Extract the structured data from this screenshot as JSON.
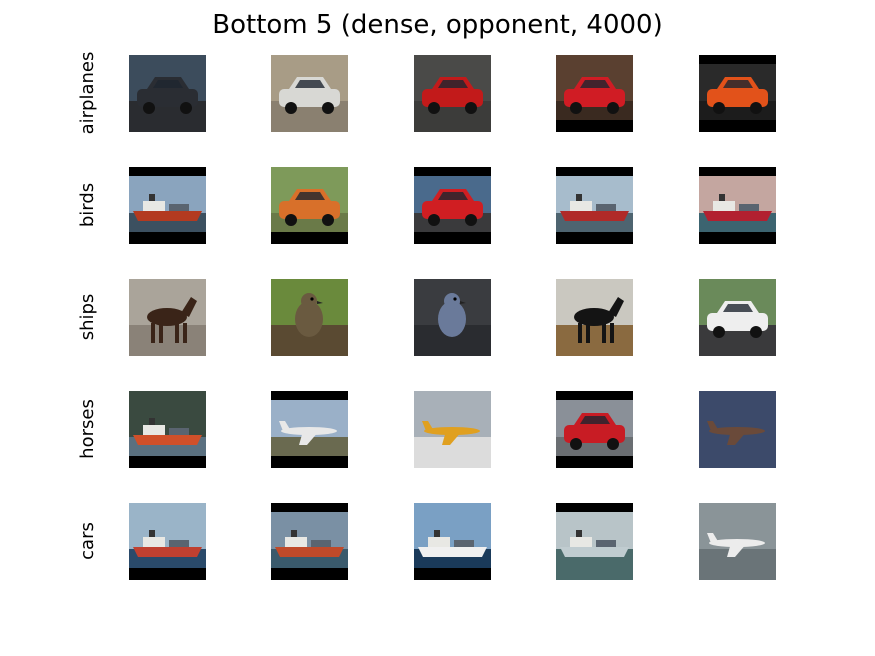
{
  "figure": {
    "title": "Bottom 5 (dense, opponent, 4000)",
    "rows": [
      {
        "label": "airplanes",
        "images": [
          {
            "name": "dark-hatchback-car",
            "subject": "car",
            "sky": "#3c4c5c",
            "ground": "#2a2c30",
            "body": "#2a2d33",
            "bars": "none"
          },
          {
            "name": "silver-compact-car",
            "subject": "car",
            "sky": "#a89c86",
            "ground": "#8a8070",
            "body": "#d8d8d4",
            "bars": "none"
          },
          {
            "name": "red-car-open-hood",
            "subject": "car",
            "sky": "#4a4a48",
            "ground": "#3c3c3a",
            "body": "#c21a1a",
            "bars": "none"
          },
          {
            "name": "red-hatchback-front",
            "subject": "car",
            "sky": "#5a4030",
            "ground": "#3a2a20",
            "body": "#d01c24",
            "bars": "bottom"
          },
          {
            "name": "orange-beetle-car",
            "subject": "car",
            "sky": "#2a2a2a",
            "ground": "#1c1c1c",
            "body": "#e2521a",
            "bars": "both"
          }
        ]
      },
      {
        "label": "birds",
        "images": [
          {
            "name": "cargo-ship-harbor",
            "subject": "ship",
            "sky": "#8aa4be",
            "ground": "#3c5060",
            "body": "#b33a20",
            "bars": "both"
          },
          {
            "name": "orange-muscle-car",
            "subject": "car",
            "sky": "#7e9a5a",
            "ground": "#6a7a48",
            "body": "#d8702a",
            "bars": "bottom"
          },
          {
            "name": "red-convertible",
            "subject": "car",
            "sky": "#4a6a8c",
            "ground": "#3a3a3c",
            "body": "#d01e22",
            "bars": "both"
          },
          {
            "name": "red-ferry-boat",
            "subject": "ship",
            "sky": "#a7bccc",
            "ground": "#4e6470",
            "body": "#b02a28",
            "bars": "both"
          },
          {
            "name": "red-tanker-ship",
            "subject": "ship",
            "sky": "#c4a6a0",
            "ground": "#3c6470",
            "body": "#b22030",
            "bars": "both"
          }
        ]
      },
      {
        "label": "ships",
        "images": [
          {
            "name": "horse-with-cart",
            "subject": "horse",
            "sky": "#aaa49a",
            "ground": "#8a8278",
            "body": "#3a2418",
            "bars": "none"
          },
          {
            "name": "spotted-bird-branch",
            "subject": "bird",
            "sky": "#6a8a3c",
            "ground": "#5a4a32",
            "body": "#6a5a40",
            "bars": "none"
          },
          {
            "name": "blue-bird-closeup",
            "subject": "bird",
            "sky": "#3a3c40",
            "ground": "#2a2c30",
            "body": "#6a7a9a",
            "bars": "none"
          },
          {
            "name": "dressage-horse-rider",
            "subject": "horse",
            "sky": "#cac8c0",
            "ground": "#8a6a40",
            "body": "#141414",
            "bars": "none"
          },
          {
            "name": "white-race-car",
            "subject": "car",
            "sky": "#6a8a5a",
            "ground": "#3a3a3c",
            "body": "#eeeeee",
            "bars": "none"
          }
        ]
      },
      {
        "label": "horses",
        "images": [
          {
            "name": "red-ship-mountains",
            "subject": "ship",
            "sky": "#3a4a40",
            "ground": "#5a7080",
            "body": "#d0502a",
            "bars": "bottom"
          },
          {
            "name": "airliner-on-runway",
            "subject": "plane",
            "sky": "#9ab0c8",
            "ground": "#6a6a50",
            "body": "#e8e8e8",
            "bars": "both"
          },
          {
            "name": "yellow-plane-snow",
            "subject": "plane",
            "sky": "#a8b0b8",
            "ground": "#dcdcdc",
            "body": "#e0a020",
            "bars": "none"
          },
          {
            "name": "red-convertible-side",
            "subject": "car",
            "sky": "#8a9098",
            "ground": "#6a6e72",
            "body": "#c81c24",
            "bars": "both"
          },
          {
            "name": "jet-in-flight",
            "subject": "plane",
            "sky": "#3c4a6a",
            "ground": "#3c4a6a",
            "body": "#6a4a3a",
            "bars": "none"
          }
        ]
      },
      {
        "label": "cars",
        "images": [
          {
            "name": "container-ship-sea",
            "subject": "ship",
            "sky": "#9ab4c8",
            "ground": "#2a4a6a",
            "body": "#c04030",
            "bars": "bottom"
          },
          {
            "name": "tanker-port",
            "subject": "ship",
            "sky": "#7a90a4",
            "ground": "#3a5a6c",
            "body": "#c04a2a",
            "bars": "both"
          },
          {
            "name": "white-cruise-ferry",
            "subject": "ship",
            "sky": "#7aa0c4",
            "ground": "#1a3a5a",
            "body": "#f0f0f0",
            "bars": "bottom"
          },
          {
            "name": "ships-in-harbor",
            "subject": "ship",
            "sky": "#b8c4c8",
            "ground": "#4a6a6a",
            "body": "#c0ccd0",
            "bars": "top"
          },
          {
            "name": "airliner-landing",
            "subject": "plane",
            "sky": "#8a9498",
            "ground": "#6a7478",
            "body": "#ececec",
            "bars": "none"
          }
        ]
      }
    ]
  }
}
